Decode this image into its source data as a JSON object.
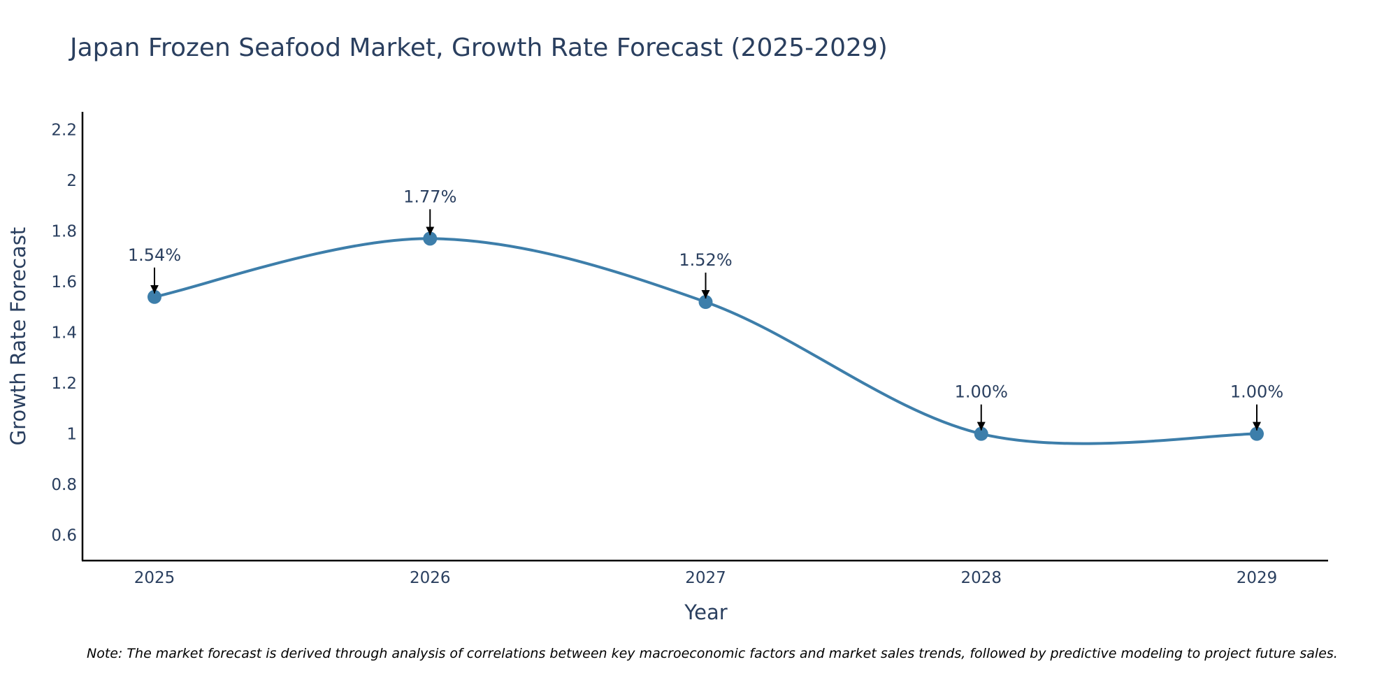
{
  "chart_data": {
    "type": "line",
    "title": "Japan Frozen Seafood Market, Growth Rate Forecast (2025-2029)",
    "xlabel": "Year",
    "ylabel": "Growth Rate Forecast",
    "categories": [
      "2025",
      "2026",
      "2027",
      "2028",
      "2029"
    ],
    "values": [
      1.54,
      1.77,
      1.52,
      1.0,
      1.0
    ],
    "data_labels": [
      "1.54%",
      "1.77%",
      "1.52%",
      "1.00%",
      "1.00%"
    ],
    "ylim": [
      0.5,
      2.27
    ],
    "yticks": [
      0.6,
      0.8,
      1.0,
      1.2,
      1.4,
      1.6,
      1.8,
      2.0,
      2.2
    ],
    "ytick_labels": [
      "0.6",
      "0.8",
      "1",
      "1.2",
      "1.4",
      "1.6",
      "1.8",
      "2",
      "2.2"
    ],
    "grid": false,
    "line_shape": "spline",
    "series_color": "#3d7eaa",
    "marker_color": "#3d7eaa",
    "arrow_color": "#000000",
    "note": "Note: The market forecast is derived through analysis of correlations between key macroeconomic factors and market sales trends, followed by predictive modeling to project future sales."
  }
}
